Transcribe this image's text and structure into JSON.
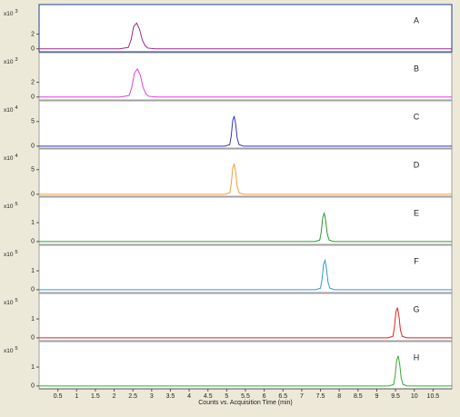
{
  "chart_data": {
    "type": "line",
    "xlabel": "Counts vs. Acquisition Time (min)",
    "xlim": [
      0,
      11
    ],
    "xticks": [
      0.5,
      1,
      1.5,
      2,
      2.5,
      3,
      3.5,
      4,
      4.5,
      5,
      5.5,
      6,
      6.5,
      7,
      7.5,
      8,
      8.5,
      9,
      9.5,
      10,
      10.5
    ],
    "panels": [
      {
        "label": "A",
        "scale_label": "x10",
        "scale_exp": "3",
        "color": "#9a2a8a",
        "ylim": [
          -0.4,
          6
        ],
        "yticks": [
          0,
          2
        ],
        "x": [
          0,
          2.15,
          2.38,
          2.45,
          2.52,
          2.6,
          2.68,
          2.75,
          2.83,
          2.9,
          3.1,
          11
        ],
        "values": [
          0,
          0,
          0.2,
          1.2,
          3.0,
          3.5,
          2.6,
          1.2,
          0.4,
          0.1,
          0,
          0
        ]
      },
      {
        "label": "B",
        "scale_label": "x10",
        "scale_exp": "3",
        "color": "#e040e0",
        "ylim": [
          -0.4,
          6
        ],
        "yticks": [
          0,
          2
        ],
        "x": [
          0,
          2.17,
          2.4,
          2.47,
          2.54,
          2.62,
          2.7,
          2.77,
          2.85,
          2.92,
          3.12,
          11
        ],
        "values": [
          0,
          0,
          0.2,
          1.3,
          3.2,
          3.8,
          2.9,
          1.3,
          0.4,
          0.1,
          0,
          0
        ]
      },
      {
        "label": "C",
        "scale_label": "x10",
        "scale_exp": "4",
        "color": "#3535c0",
        "ylim": [
          -0.4,
          9.2
        ],
        "yticks": [
          0,
          5
        ],
        "x": [
          0,
          4.95,
          5.08,
          5.12,
          5.16,
          5.2,
          5.24,
          5.28,
          5.33,
          5.45,
          11
        ],
        "values": [
          0,
          0,
          0.3,
          2.0,
          5.2,
          6.1,
          4.4,
          1.6,
          0.3,
          0,
          0
        ]
      },
      {
        "label": "D",
        "scale_label": "x10",
        "scale_exp": "4",
        "color": "#ff9933",
        "ylim": [
          -0.4,
          9.2
        ],
        "yticks": [
          0,
          5
        ],
        "x": [
          0,
          4.95,
          5.08,
          5.12,
          5.16,
          5.2,
          5.24,
          5.28,
          5.33,
          5.45,
          11
        ],
        "values": [
          0,
          0,
          0.3,
          2.1,
          5.3,
          6.2,
          4.5,
          1.6,
          0.3,
          0,
          0
        ]
      },
      {
        "label": "E",
        "scale_label": "x10",
        "scale_exp": "5",
        "color": "#2a9a2a",
        "ylim": [
          -0.15,
          2.35
        ],
        "yticks": [
          0,
          1
        ],
        "x": [
          0,
          7.35,
          7.48,
          7.52,
          7.56,
          7.6,
          7.64,
          7.68,
          7.73,
          7.85,
          11
        ],
        "values": [
          0,
          0,
          0.08,
          0.5,
          1.28,
          1.5,
          1.1,
          0.4,
          0.08,
          0,
          0
        ]
      },
      {
        "label": "F",
        "scale_label": "x10",
        "scale_exp": "5",
        "color": "#3399cc",
        "ylim": [
          -0.15,
          2.35
        ],
        "yticks": [
          0,
          1
        ],
        "x": [
          0,
          7.37,
          7.5,
          7.54,
          7.58,
          7.62,
          7.66,
          7.7,
          7.75,
          7.87,
          11
        ],
        "values": [
          0,
          0,
          0.08,
          0.52,
          1.32,
          1.55,
          1.13,
          0.41,
          0.08,
          0,
          0
        ]
      },
      {
        "label": "G",
        "scale_label": "x10",
        "scale_exp": "5",
        "color": "#e02020",
        "ylim": [
          -0.15,
          2.35
        ],
        "yticks": [
          0,
          1
        ],
        "x": [
          0,
          9.3,
          9.43,
          9.47,
          9.51,
          9.55,
          9.59,
          9.63,
          9.68,
          9.8,
          11
        ],
        "values": [
          0,
          0,
          0.08,
          0.55,
          1.36,
          1.6,
          1.17,
          0.42,
          0.08,
          0,
          0
        ]
      },
      {
        "label": "H",
        "scale_label": "x10",
        "scale_exp": "5",
        "color": "#33aa33",
        "ylim": [
          -0.15,
          2.35
        ],
        "yticks": [
          0,
          1
        ],
        "x": [
          0,
          9.32,
          9.45,
          9.49,
          9.53,
          9.57,
          9.61,
          9.65,
          9.7,
          9.82,
          11
        ],
        "values": [
          0,
          0,
          0.08,
          0.55,
          1.36,
          1.6,
          1.17,
          0.42,
          0.08,
          0,
          0
        ]
      }
    ]
  }
}
